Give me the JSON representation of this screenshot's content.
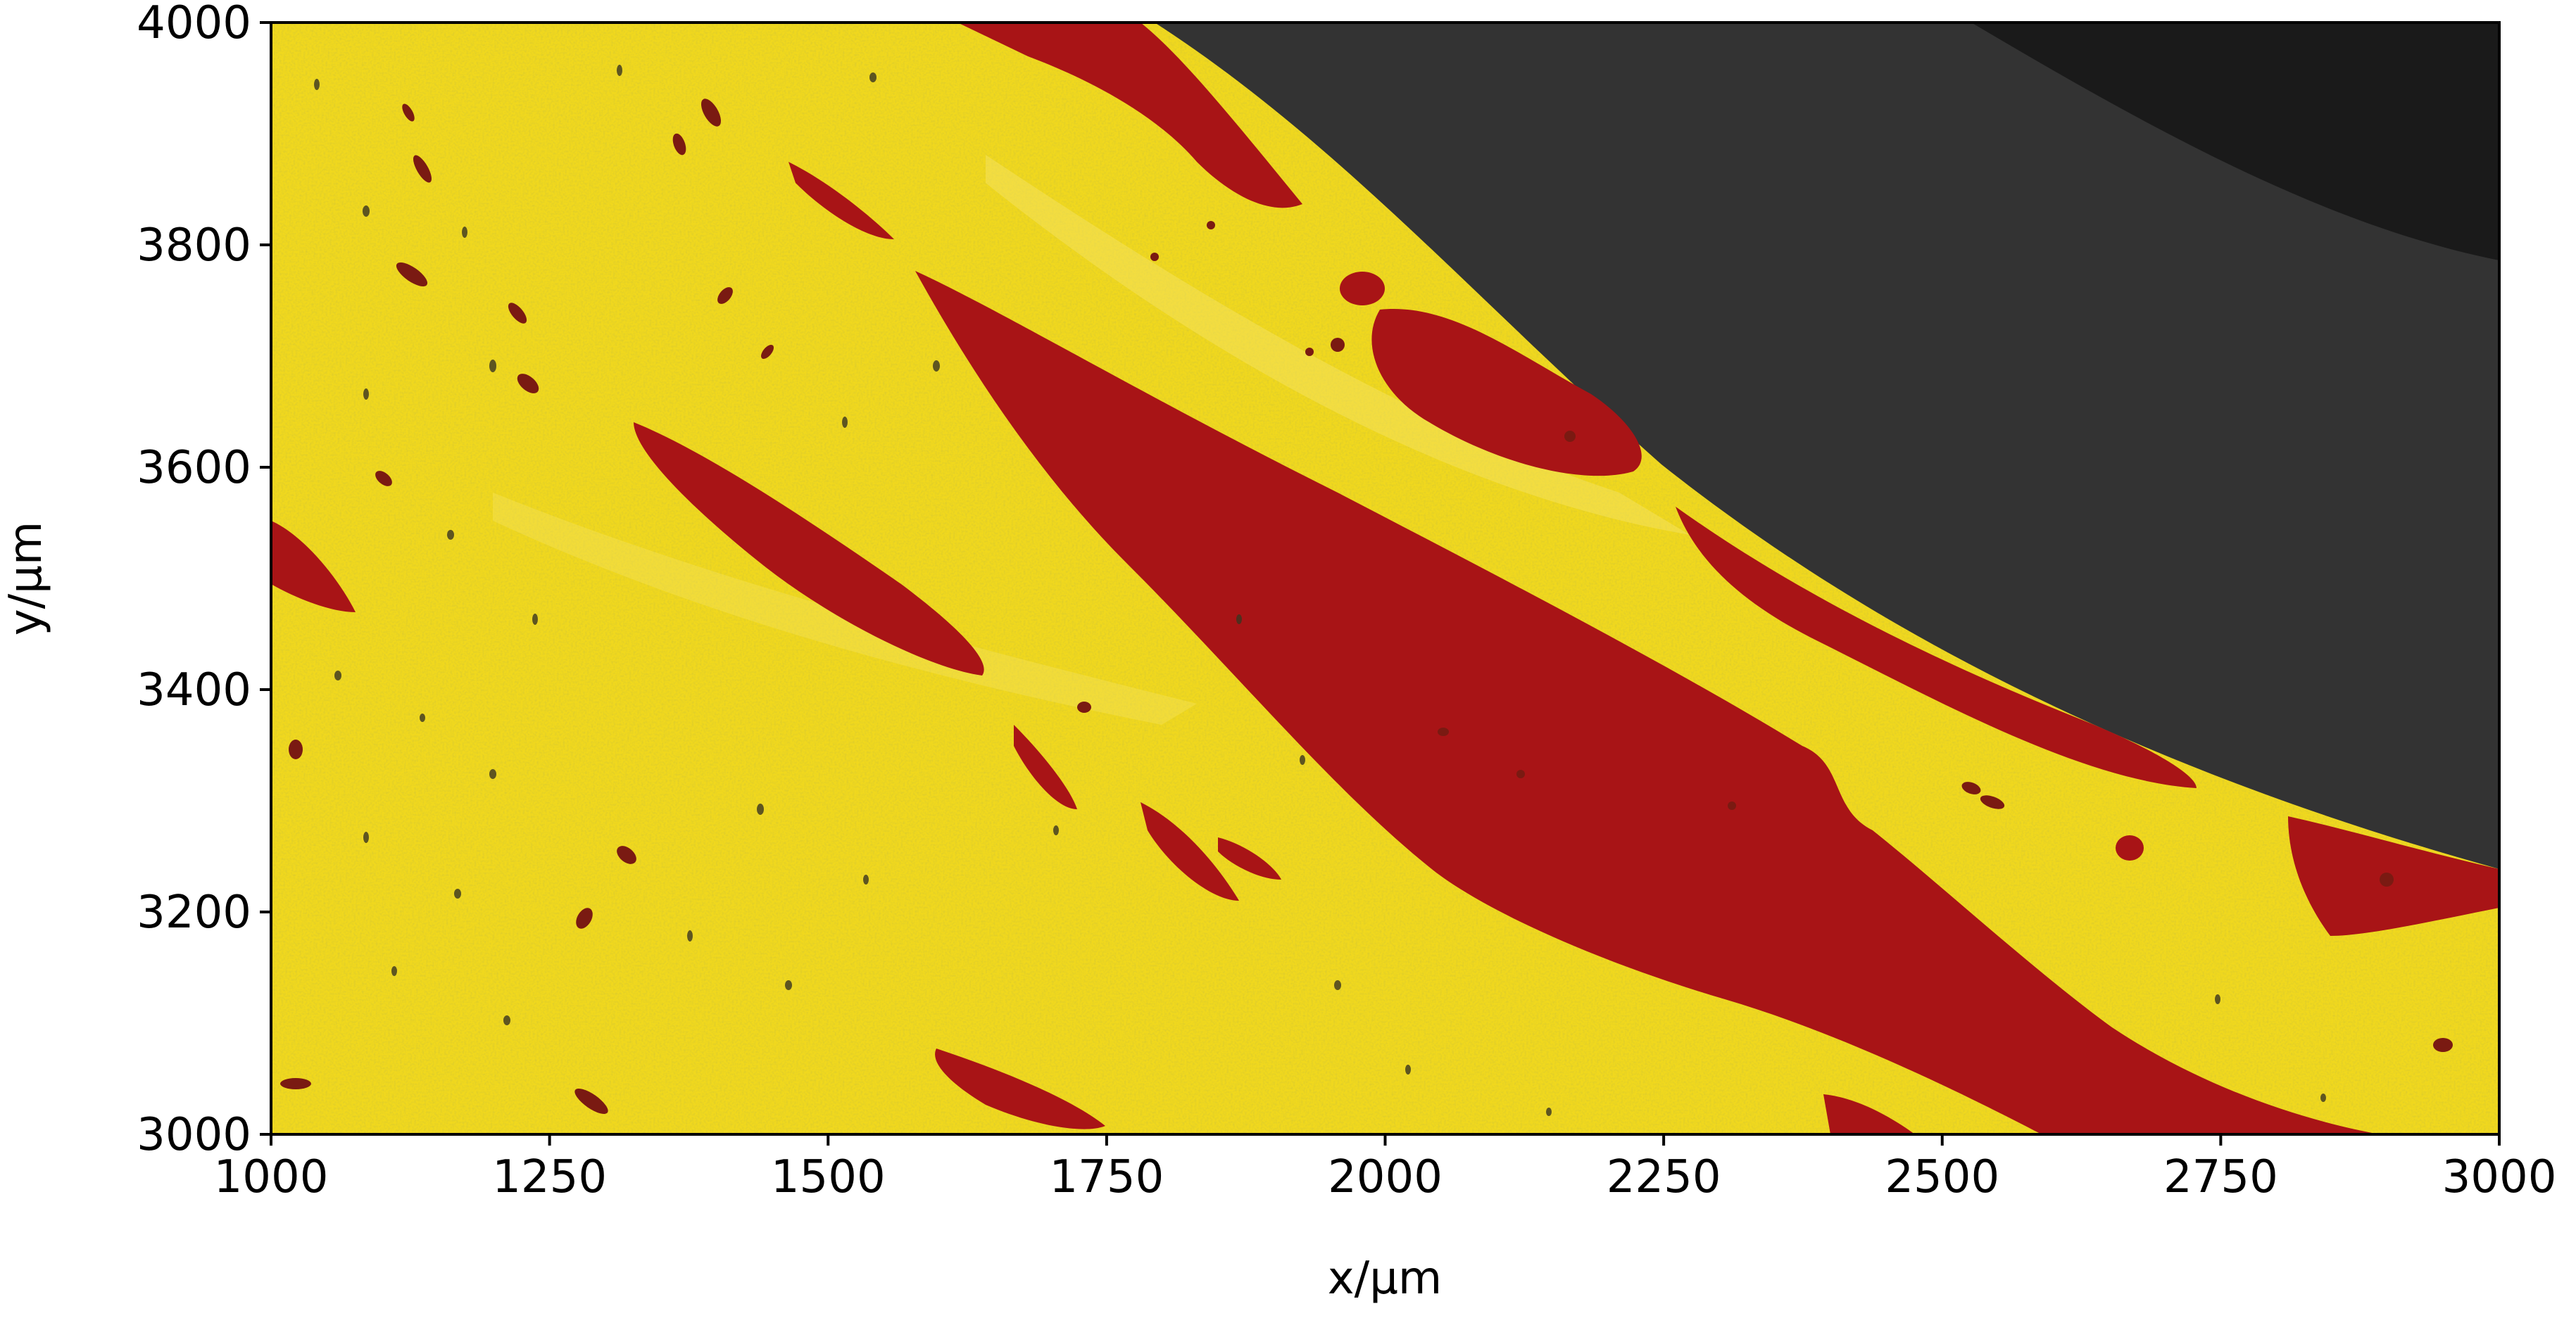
{
  "figure": {
    "xlabel": "x/µm",
    "ylabel": "y/µm",
    "xlim": [
      1000,
      3000
    ],
    "ylim": [
      3000,
      4000
    ],
    "xticks": [
      {
        "value": 1000,
        "label": "1000"
      },
      {
        "value": 1250,
        "label": "1250"
      },
      {
        "value": 1500,
        "label": "1500"
      },
      {
        "value": 1750,
        "label": "1750"
      },
      {
        "value": 2000,
        "label": "2000"
      },
      {
        "value": 2250,
        "label": "2250"
      },
      {
        "value": 2500,
        "label": "2500"
      },
      {
        "value": 2750,
        "label": "2750"
      },
      {
        "value": 3000,
        "label": "3000"
      }
    ],
    "yticks": [
      {
        "value": 3000,
        "label": "3000"
      },
      {
        "value": 3200,
        "label": "3200"
      },
      {
        "value": 3400,
        "label": "3400"
      },
      {
        "value": 3600,
        "label": "3600"
      },
      {
        "value": 3800,
        "label": "3800"
      },
      {
        "value": 4000,
        "label": "4000"
      }
    ],
    "colors": {
      "bone": "#f0d81e",
      "pore": "#a81416",
      "void": "#333333",
      "void_dark": "#1a1a1a"
    }
  }
}
